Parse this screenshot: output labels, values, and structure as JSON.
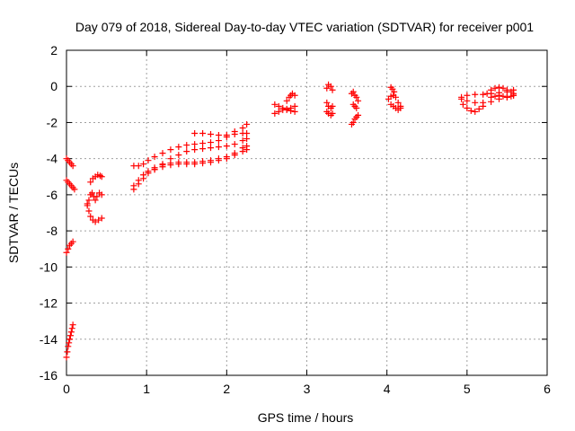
{
  "chart_data": {
    "type": "scatter",
    "title": "Day 079 of 2018, Sidereal Day-to-day VTEC variation (SDTVAR) for receiver p001",
    "xlabel": "GPS time / hours",
    "ylabel": "SDTVAR / TECUs",
    "xlim": [
      0,
      6
    ],
    "ylim": [
      -16,
      2
    ],
    "xticks": [
      "0",
      "1",
      "2",
      "3",
      "4",
      "5",
      "6"
    ],
    "yticks": [
      "-16",
      "-14",
      "-12",
      "-10",
      "-8",
      "-6",
      "-4",
      "-2",
      "0",
      "2"
    ],
    "grid": true,
    "marker": "plus",
    "color": "#ff0000",
    "segments": [
      {
        "x": [
          0.0,
          0.01,
          0.02,
          0.03,
          0.04,
          0.05,
          0.06,
          0.07,
          0.08
        ],
        "y": [
          -15.0,
          -14.7,
          -14.4,
          -14.2,
          -14.0,
          -13.8,
          -13.6,
          -13.4,
          -13.2
        ]
      },
      {
        "x": [
          0.0,
          0.02,
          0.04,
          0.06,
          0.08
        ],
        "y": [
          -9.2,
          -9.0,
          -8.8,
          -8.7,
          -8.6
        ]
      },
      {
        "x": [
          0.0,
          0.02,
          0.04,
          0.06,
          0.08,
          0.1
        ],
        "y": [
          -5.2,
          -5.3,
          -5.4,
          -5.5,
          -5.6,
          -5.7
        ]
      },
      {
        "x": [
          0.0,
          0.02,
          0.04,
          0.06,
          0.08
        ],
        "y": [
          -4.0,
          -4.1,
          -4.2,
          -4.3,
          -4.4
        ]
      },
      {
        "x": [
          0.26,
          0.28,
          0.3,
          0.33,
          0.36,
          0.4,
          0.44
        ],
        "y": [
          -6.5,
          -6.9,
          -7.2,
          -7.4,
          -7.5,
          -7.4,
          -7.3
        ]
      },
      {
        "x": [
          0.26,
          0.28,
          0.3,
          0.32,
          0.34,
          0.36,
          0.38,
          0.41,
          0.44
        ],
        "y": [
          -6.6,
          -6.3,
          -6.0,
          -5.9,
          -6.1,
          -6.3,
          -6.1,
          -5.9,
          -6.0
        ]
      },
      {
        "x": [
          0.3,
          0.33,
          0.36,
          0.39,
          0.42,
          0.44
        ],
        "y": [
          -5.3,
          -5.1,
          -5.0,
          -4.9,
          -4.95,
          -5.0
        ]
      },
      {
        "x": [
          0.84,
          0.9,
          0.96,
          1.02,
          1.1,
          1.2,
          1.3,
          1.4,
          1.5,
          1.6,
          1.7,
          1.8,
          1.9,
          2.0,
          2.1,
          2.2,
          2.25
        ],
        "y": [
          -4.4,
          -4.4,
          -4.3,
          -4.1,
          -3.9,
          -3.7,
          -3.5,
          -3.35,
          -3.25,
          -3.2,
          -3.15,
          -3.1,
          -3.0,
          -2.8,
          -2.5,
          -2.3,
          -2.1
        ]
      },
      {
        "x": [
          0.84,
          0.9,
          0.96,
          1.02,
          1.1,
          1.2,
          1.3,
          1.4,
          1.5,
          1.6,
          1.7,
          1.8,
          1.9,
          2.0,
          2.1,
          2.2,
          2.25
        ],
        "y": [
          -5.7,
          -5.4,
          -5.1,
          -4.8,
          -4.6,
          -4.45,
          -4.35,
          -4.3,
          -4.3,
          -4.3,
          -4.25,
          -4.2,
          -4.1,
          -4.0,
          -3.8,
          -3.6,
          -3.5
        ]
      },
      {
        "x": [
          0.84,
          0.9,
          0.96,
          1.02,
          1.1,
          1.2,
          1.3,
          1.4,
          1.5,
          1.6,
          1.7,
          1.8,
          1.9,
          2.0,
          2.1,
          2.2,
          2.25
        ],
        "y": [
          -5.5,
          -5.2,
          -4.9,
          -4.7,
          -4.5,
          -4.35,
          -4.25,
          -4.2,
          -4.2,
          -4.2,
          -4.15,
          -4.1,
          -4.0,
          -3.9,
          -3.7,
          -3.4,
          -3.3
        ]
      },
      {
        "x": [
          1.1,
          1.2,
          1.3,
          1.4,
          1.5,
          1.6,
          1.7,
          1.8,
          1.9,
          2.0,
          2.1,
          2.2,
          2.25
        ],
        "y": [
          -4.6,
          -4.3,
          -4.0,
          -3.8,
          -3.6,
          -3.5,
          -3.45,
          -3.4,
          -3.35,
          -3.3,
          -3.2,
          -3.0,
          -2.9
        ]
      },
      {
        "x": [
          1.6,
          1.7,
          1.8,
          1.9,
          2.0,
          2.1,
          2.2,
          2.25
        ],
        "y": [
          -2.6,
          -2.6,
          -2.65,
          -2.7,
          -2.7,
          -2.65,
          -2.6,
          -2.6
        ]
      },
      {
        "x": [
          2.6,
          2.65,
          2.7,
          2.75,
          2.8,
          2.85
        ],
        "y": [
          -1.5,
          -1.4,
          -1.3,
          -1.25,
          -1.2,
          -1.1
        ]
      },
      {
        "x": [
          2.6,
          2.65,
          2.7,
          2.75,
          2.8,
          2.85
        ],
        "y": [
          -1.0,
          -1.1,
          -1.2,
          -1.3,
          -1.35,
          -1.4
        ]
      },
      {
        "x": [
          2.75,
          2.78,
          2.8,
          2.82,
          2.85
        ],
        "y": [
          -0.8,
          -0.6,
          -0.5,
          -0.4,
          -0.5
        ]
      },
      {
        "x": [
          3.25,
          3.27,
          3.3,
          3.32
        ],
        "y": [
          -0.1,
          0.1,
          0.0,
          -0.2
        ]
      },
      {
        "x": [
          3.25,
          3.27,
          3.3,
          3.32
        ],
        "y": [
          -0.9,
          -1.1,
          -1.2,
          -1.1
        ]
      },
      {
        "x": [
          3.25,
          3.27,
          3.3,
          3.32
        ],
        "y": [
          -1.4,
          -1.5,
          -1.6,
          -1.5
        ]
      },
      {
        "x": [
          3.56,
          3.58,
          3.6,
          3.62,
          3.64
        ],
        "y": [
          -0.4,
          -0.3,
          -0.5,
          -0.6,
          -0.8
        ]
      },
      {
        "x": [
          3.58,
          3.6,
          3.62
        ],
        "y": [
          -1.0,
          -1.1,
          -1.2
        ]
      },
      {
        "x": [
          3.56,
          3.58,
          3.6,
          3.62,
          3.64
        ],
        "y": [
          -2.1,
          -2.0,
          -1.8,
          -1.7,
          -1.6
        ]
      },
      {
        "x": [
          4.05,
          4.07,
          4.09
        ],
        "y": [
          -0.05,
          -0.15,
          -0.3
        ]
      },
      {
        "x": [
          4.02,
          4.05,
          4.08,
          4.11,
          4.14,
          4.17
        ],
        "y": [
          -0.7,
          -0.55,
          -0.5,
          -0.6,
          -0.9,
          -1.1
        ]
      },
      {
        "x": [
          4.05,
          4.08,
          4.11,
          4.14,
          4.17
        ],
        "y": [
          -1.0,
          -1.1,
          -1.2,
          -1.3,
          -1.2
        ]
      },
      {
        "x": [
          4.93,
          5.0,
          5.1,
          5.2,
          5.3,
          5.4,
          5.5,
          5.58
        ],
        "y": [
          -0.7,
          -0.8,
          -0.9,
          -0.9,
          -0.85,
          -0.7,
          -0.6,
          -0.5
        ]
      },
      {
        "x": [
          4.93,
          5.0,
          5.1,
          5.2,
          5.3,
          5.4,
          5.5,
          5.58
        ],
        "y": [
          -0.6,
          -0.5,
          -0.45,
          -0.45,
          -0.4,
          -0.35,
          -0.3,
          -0.2
        ]
      },
      {
        "x": [
          4.95,
          5.0,
          5.05,
          5.1,
          5.15,
          5.2
        ],
        "y": [
          -1.0,
          -1.2,
          -1.35,
          -1.4,
          -1.25,
          -1.1
        ]
      },
      {
        "x": [
          5.25,
          5.3,
          5.35,
          5.4,
          5.45,
          5.5,
          5.55,
          5.58
        ],
        "y": [
          -0.4,
          -0.2,
          -0.1,
          -0.05,
          -0.1,
          -0.2,
          -0.3,
          -0.4
        ]
      },
      {
        "x": [
          5.3,
          5.35,
          5.4,
          5.45,
          5.5,
          5.55,
          5.58
        ],
        "y": [
          -0.6,
          -0.55,
          -0.5,
          -0.55,
          -0.6,
          -0.55,
          -0.5
        ]
      }
    ]
  }
}
